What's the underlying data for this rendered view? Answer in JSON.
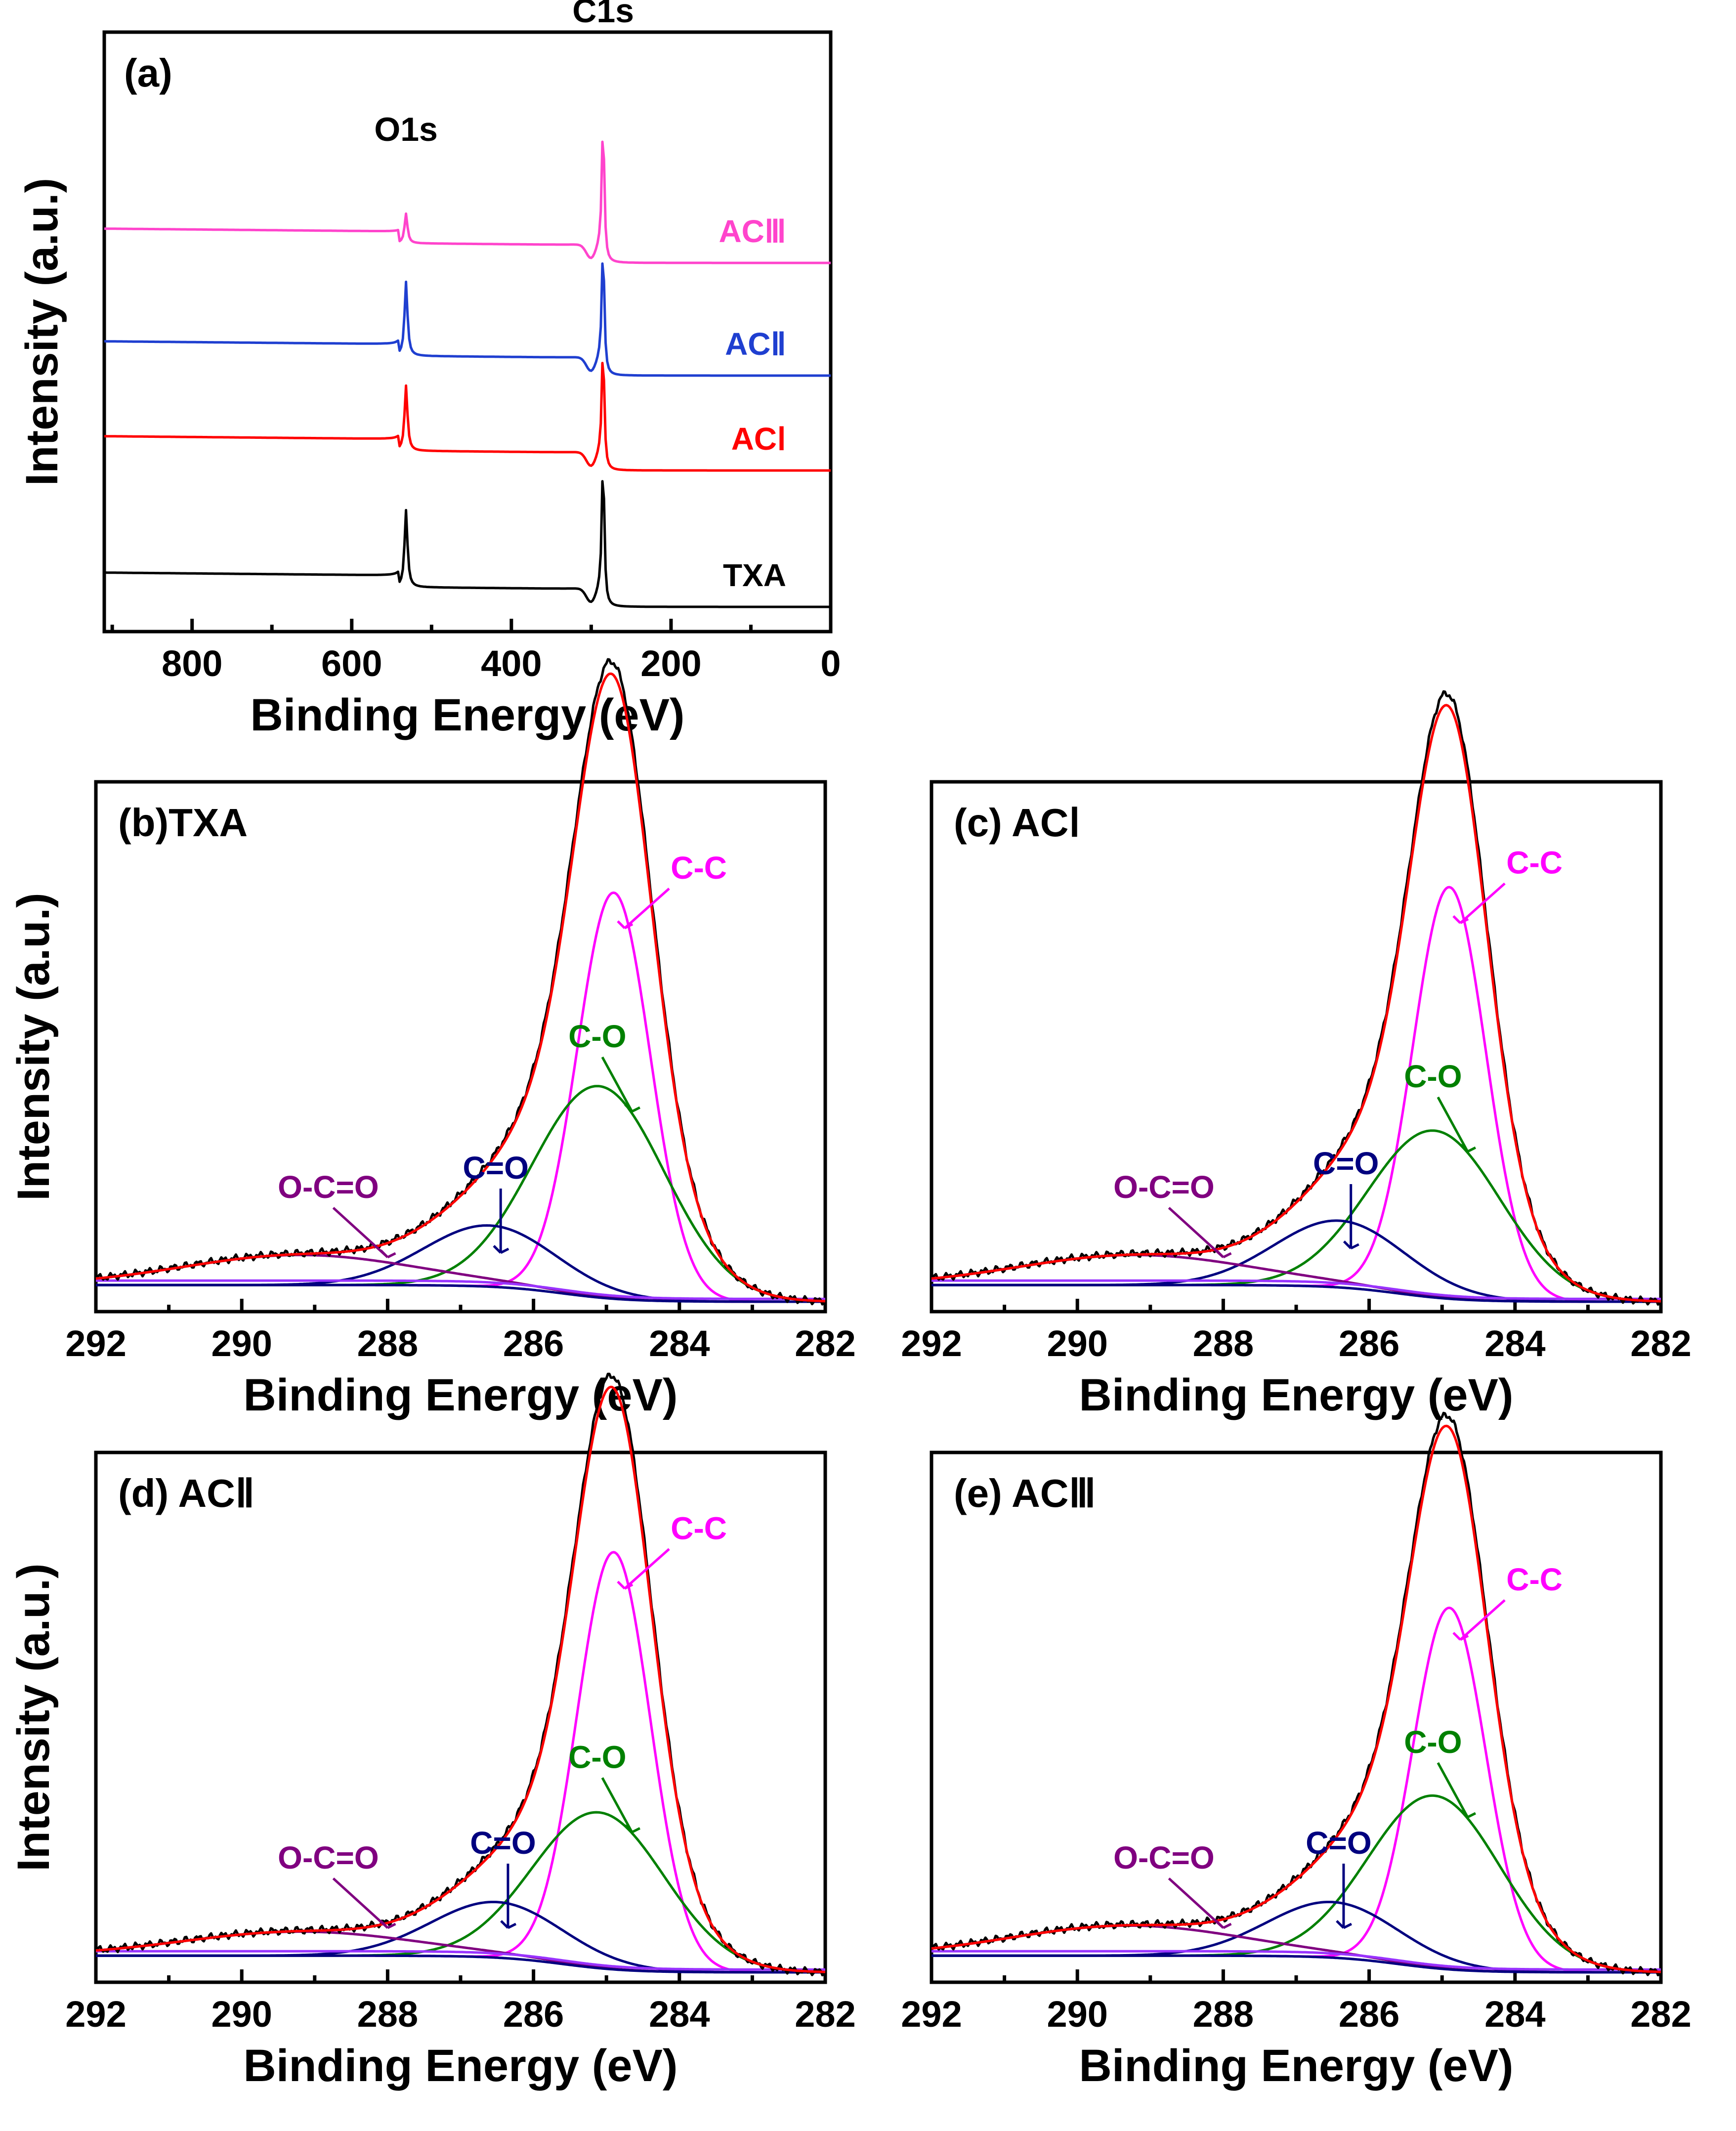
{
  "chart_data": [
    {
      "id": "a",
      "type": "line",
      "panel_label": "(a)",
      "xlabel": "Binding Energy (eV)",
      "ylabel": "Intensity (a.u.)",
      "xlim": [
        910,
        0
      ],
      "xticks": [
        800,
        600,
        400,
        200,
        0
      ],
      "y_ticks_shown": false,
      "peak_annotations": [
        {
          "label": "O1s",
          "x": 532
        },
        {
          "label": "C1s",
          "x": 285
        }
      ],
      "series": [
        {
          "name": "TXA",
          "color": "#000000",
          "offset": 0.0,
          "o1s_height": 0.26,
          "c1s_height": 0.48
        },
        {
          "name": "ACⅠ",
          "color": "#ff0000",
          "offset": 0.46,
          "o1s_height": 0.22,
          "c1s_height": 0.4
        },
        {
          "name": "ACⅡ",
          "color": "#1f3fd0",
          "offset": 0.78,
          "o1s_height": 0.25,
          "c1s_height": 0.42
        },
        {
          "name": "ACⅢ",
          "color": "#ff44cc",
          "offset": 1.16,
          "o1s_height": 0.1,
          "c1s_height": 0.46
        }
      ]
    },
    {
      "id": "b",
      "type": "line",
      "panel_label": "(b)TXA",
      "xlabel": "Binding Energy (eV)",
      "ylabel": "Intensity (a.u.)",
      "xlim": [
        292,
        282
      ],
      "xticks": [
        292,
        290,
        288,
        286,
        284,
        282
      ],
      "components": [
        {
          "name": "C-C",
          "center": 284.9,
          "height": 0.73,
          "width": 0.5,
          "color": "#ff00ff"
        },
        {
          "name": "C-O",
          "center": 285.1,
          "height": 0.38,
          "width": 0.9,
          "color": "#008000"
        },
        {
          "name": "C=O",
          "center": 286.6,
          "height": 0.11,
          "width": 0.9,
          "color": "#00007f"
        },
        {
          "name": "O-C=O",
          "center": 289.2,
          "height": 0.1,
          "width": 1.6,
          "color": "#800080"
        }
      ],
      "baseline_left": 0.06,
      "baseline_right": 0.0
    },
    {
      "id": "c",
      "type": "line",
      "panel_label": "(c) ACⅠ",
      "xlabel": "Binding Energy (eV)",
      "ylabel": "",
      "xlim": [
        292,
        282
      ],
      "xticks": [
        292,
        290,
        288,
        286,
        284,
        282
      ],
      "components": [
        {
          "name": "C-C",
          "center": 284.9,
          "height": 0.74,
          "width": 0.5,
          "color": "#ff00ff"
        },
        {
          "name": "C-O",
          "center": 285.1,
          "height": 0.3,
          "width": 0.9,
          "color": "#008000"
        },
        {
          "name": "C=O",
          "center": 286.4,
          "height": 0.12,
          "width": 0.9,
          "color": "#00007f"
        },
        {
          "name": "O-C=O",
          "center": 289.2,
          "height": 0.1,
          "width": 1.6,
          "color": "#800080"
        }
      ],
      "baseline_left": 0.06,
      "baseline_right": 0.0
    },
    {
      "id": "d",
      "type": "line",
      "panel_label": "(d) ACⅡ",
      "xlabel": "Binding Energy (eV)",
      "ylabel": "Intensity (a.u.)",
      "xlim": [
        292,
        282
      ],
      "xticks": [
        292,
        290,
        288,
        286,
        284,
        282
      ],
      "components": [
        {
          "name": "C-C",
          "center": 284.9,
          "height": 0.75,
          "width": 0.5,
          "color": "#ff00ff"
        },
        {
          "name": "C-O",
          "center": 285.1,
          "height": 0.28,
          "width": 0.9,
          "color": "#008000"
        },
        {
          "name": "C=O",
          "center": 286.5,
          "height": 0.1,
          "width": 0.9,
          "color": "#00007f"
        },
        {
          "name": "O-C=O",
          "center": 289.2,
          "height": 0.08,
          "width": 1.6,
          "color": "#800080"
        }
      ],
      "baseline_left": 0.06,
      "baseline_right": 0.0
    },
    {
      "id": "e",
      "type": "line",
      "panel_label": "(e) ACⅢ",
      "xlabel": "Binding Energy (eV)",
      "ylabel": "",
      "xlim": [
        292,
        282
      ],
      "xticks": [
        292,
        290,
        288,
        286,
        284,
        282
      ],
      "components": [
        {
          "name": "C-C",
          "center": 284.9,
          "height": 0.65,
          "width": 0.5,
          "color": "#ff00ff"
        },
        {
          "name": "C-O",
          "center": 285.1,
          "height": 0.31,
          "width": 0.9,
          "color": "#008000"
        },
        {
          "name": "C=O",
          "center": 286.5,
          "height": 0.1,
          "width": 0.9,
          "color": "#00007f"
        },
        {
          "name": "O-C=O",
          "center": 289.3,
          "height": 0.1,
          "width": 1.6,
          "color": "#800080"
        }
      ],
      "baseline_left": 0.06,
      "baseline_right": 0.0
    }
  ]
}
